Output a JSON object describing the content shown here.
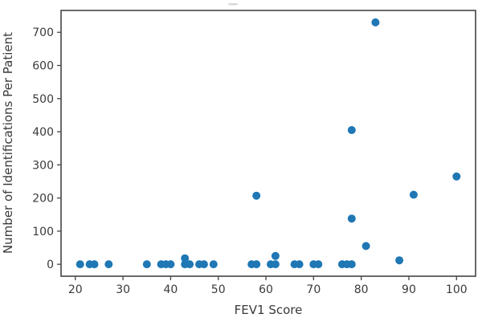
{
  "chart_data": {
    "type": "scatter",
    "title": "",
    "xlabel": "FEV1 Score",
    "ylabel": "Number of Identifications Per Patient",
    "x_ticks": [
      20,
      30,
      40,
      50,
      60,
      70,
      80,
      90,
      100
    ],
    "y_ticks": [
      0,
      100,
      200,
      300,
      400,
      500,
      600,
      700
    ],
    "xlim": [
      17,
      104
    ],
    "ylim": [
      -36,
      766
    ],
    "grid": false,
    "legend": null,
    "marker_color": "#1f77b4",
    "axis_color": "#444444",
    "points": [
      [
        21,
        0
      ],
      [
        23,
        0
      ],
      [
        24,
        0
      ],
      [
        27,
        0
      ],
      [
        35,
        0
      ],
      [
        38,
        0
      ],
      [
        39,
        0
      ],
      [
        40,
        0
      ],
      [
        43,
        0
      ],
      [
        43,
        18
      ],
      [
        44,
        0
      ],
      [
        46,
        0
      ],
      [
        47,
        0
      ],
      [
        49,
        0
      ],
      [
        57,
        0
      ],
      [
        58,
        0
      ],
      [
        58,
        207
      ],
      [
        61,
        0
      ],
      [
        62,
        0
      ],
      [
        62,
        25
      ],
      [
        66,
        0
      ],
      [
        67,
        0
      ],
      [
        70,
        0
      ],
      [
        71,
        0
      ],
      [
        76,
        0
      ],
      [
        77,
        0
      ],
      [
        78,
        0
      ],
      [
        78,
        138
      ],
      [
        78,
        405
      ],
      [
        81,
        55
      ],
      [
        83,
        730
      ],
      [
        88,
        12
      ],
      [
        91,
        210
      ],
      [
        100,
        265
      ]
    ]
  }
}
